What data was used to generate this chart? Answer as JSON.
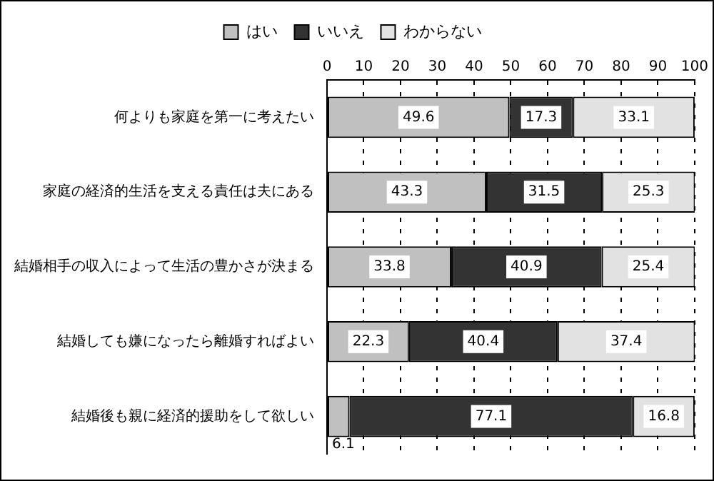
{
  "chart_data": {
    "type": "bar",
    "orientation": "horizontal",
    "stacked": true,
    "categories": [
      "何よりも家庭を第一に考えたい",
      "家庭の経済的生活を支える責任は夫にある",
      "結婚相手の収入によって生活の豊かさが決まる",
      "結婚しても嫌になったら離婚すればよい",
      "結婚後も親に経済的援助をして欲しい"
    ],
    "series": [
      {
        "name": "はい",
        "color": "#c0c0c0",
        "values": [
          49.6,
          43.3,
          33.8,
          22.3,
          6.1
        ]
      },
      {
        "name": "いいえ",
        "color": "#333333",
        "values": [
          17.3,
          31.5,
          40.9,
          40.4,
          77.1
        ]
      },
      {
        "name": "わからない",
        "color": "#e2e2e2",
        "values": [
          33.1,
          25.3,
          25.4,
          37.4,
          16.8
        ]
      }
    ],
    "xlim": [
      0,
      100
    ],
    "xticks": [
      0,
      10,
      20,
      30,
      40,
      50,
      60,
      70,
      80,
      90,
      100
    ],
    "grid": "x",
    "legend": "top",
    "data_labels": true
  }
}
